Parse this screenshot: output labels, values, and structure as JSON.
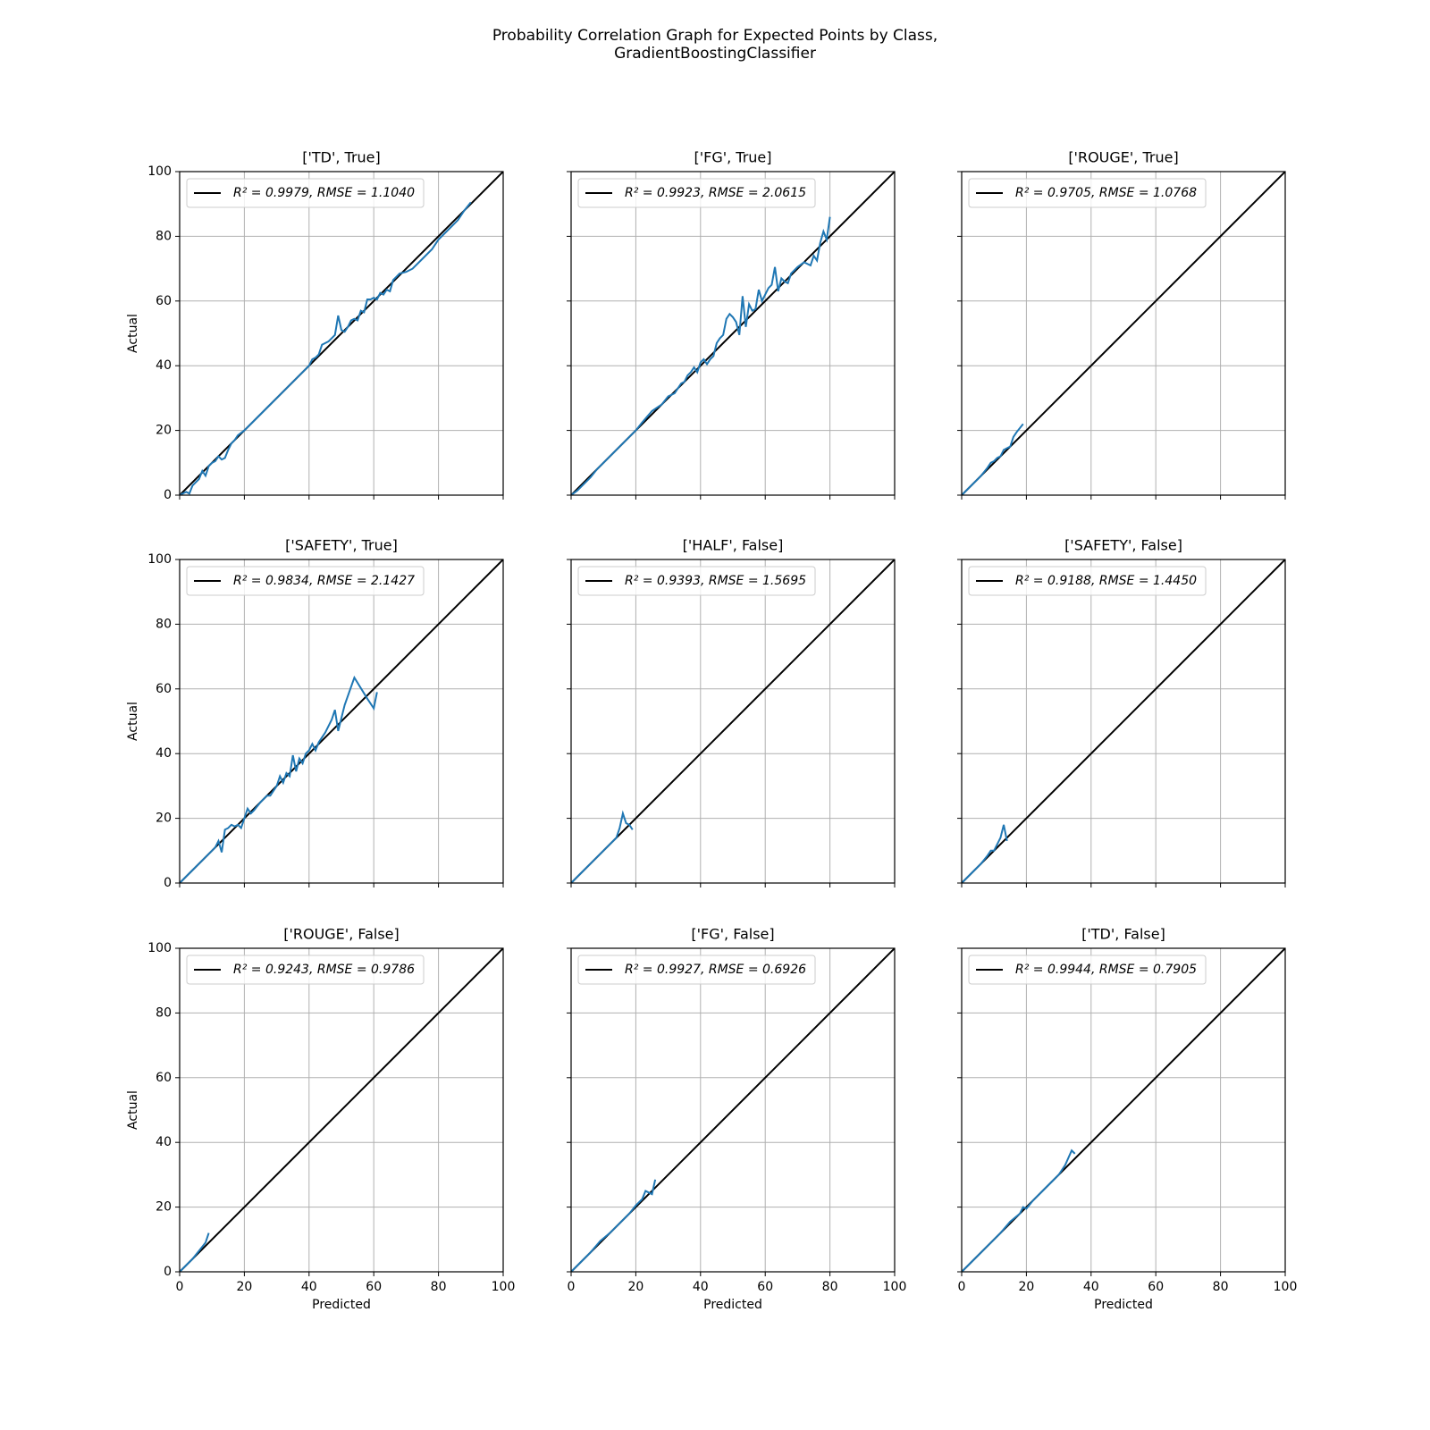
{
  "title": [
    "Probability Correlation Graph for Expected Points by Class,",
    "GradientBoostingClassifier"
  ],
  "chart_data": [
    {
      "type": "line",
      "title": "['TD', True]",
      "ylabel": "Actual",
      "xlim": [
        0,
        100
      ],
      "ylim": [
        0,
        100
      ],
      "xticks": [
        0,
        20,
        40,
        60,
        80,
        100
      ],
      "yticks": [
        0,
        20,
        40,
        60,
        80,
        100
      ],
      "x_tick_labels": false,
      "y_tick_labels": true,
      "grid": true,
      "legend": "upper left",
      "series": [
        {
          "name": "R² = 0.9979, RMSE = 1.1040",
          "color": "#000000",
          "x": [
            0,
            100
          ],
          "y": [
            0,
            100
          ]
        },
        {
          "color": "#1f77b4",
          "x": [
            0,
            2,
            3,
            4,
            5,
            6,
            7,
            8,
            9,
            10,
            11,
            12,
            13,
            14,
            15,
            16,
            17,
            18,
            20,
            22,
            25,
            28,
            30,
            32,
            35,
            38,
            40,
            41,
            42,
            43,
            44,
            45,
            46,
            47,
            48,
            49,
            50,
            51,
            52,
            53,
            54,
            55,
            56,
            57,
            58,
            59,
            60,
            61,
            62,
            63,
            64,
            65,
            66,
            67,
            68,
            70,
            72,
            75,
            78,
            80,
            83,
            86,
            88,
            90
          ],
          "y": [
            0,
            1,
            0.5,
            3,
            4,
            5,
            7.5,
            6,
            9,
            10,
            10.5,
            12,
            11,
            11.5,
            14,
            16,
            17,
            18.5,
            20,
            22,
            25,
            28,
            30,
            32,
            35,
            38,
            40,
            42,
            42.5,
            43.5,
            46.5,
            47,
            47.5,
            48.5,
            49.5,
            55.5,
            51,
            50.5,
            52,
            54,
            54.5,
            54,
            57,
            56.5,
            60.5,
            60.5,
            61,
            60.5,
            62.5,
            62,
            63.5,
            63,
            66.5,
            67.5,
            68.5,
            69,
            70,
            73,
            76,
            79,
            82,
            85,
            88,
            90.5
          ]
        }
      ]
    },
    {
      "type": "line",
      "title": "['FG', True]",
      "xlim": [
        0,
        100
      ],
      "ylim": [
        0,
        100
      ],
      "xticks": [
        0,
        20,
        40,
        60,
        80,
        100
      ],
      "yticks": [
        0,
        20,
        40,
        60,
        80,
        100
      ],
      "x_tick_labels": false,
      "y_tick_labels": false,
      "grid": true,
      "legend": "upper left",
      "series": [
        {
          "name": "R² = 0.9923, RMSE = 2.0615",
          "color": "#000000",
          "x": [
            0,
            100
          ],
          "y": [
            0,
            100
          ]
        },
        {
          "color": "#1f77b4",
          "x": [
            0,
            2,
            4,
            6,
            8,
            10,
            12,
            15,
            18,
            20,
            22,
            25,
            28,
            30,
            32,
            34,
            35,
            36,
            37,
            38,
            39,
            40,
            41,
            42,
            43,
            44,
            45,
            46,
            47,
            48,
            49,
            50,
            51,
            52,
            53,
            54,
            55,
            56,
            57,
            58,
            59,
            60,
            61,
            62,
            63,
            64,
            65,
            66,
            67,
            68,
            70,
            72,
            74,
            75,
            76,
            77,
            78,
            79,
            80
          ],
          "y": [
            0,
            1.5,
            3.5,
            5.5,
            8,
            10,
            12,
            15,
            18,
            20,
            22.5,
            26,
            28,
            30.5,
            31.5,
            34.5,
            35,
            37,
            38,
            39.5,
            38,
            41,
            42,
            40.5,
            42,
            43,
            47,
            48.5,
            49.5,
            54.5,
            56,
            55,
            53.5,
            49.5,
            61.5,
            52,
            59,
            57,
            57.5,
            63.5,
            60,
            62,
            64,
            65,
            70.5,
            63,
            67,
            66,
            65.5,
            68.5,
            70.5,
            72,
            71,
            74,
            72.5,
            78,
            81.5,
            79,
            86
          ]
        }
      ]
    },
    {
      "type": "line",
      "title": "['ROUGE', True]",
      "xlim": [
        0,
        100
      ],
      "ylim": [
        0,
        100
      ],
      "xticks": [
        0,
        20,
        40,
        60,
        80,
        100
      ],
      "yticks": [
        0,
        20,
        40,
        60,
        80,
        100
      ],
      "x_tick_labels": false,
      "y_tick_labels": false,
      "grid": true,
      "legend": "upper left",
      "series": [
        {
          "name": "R² = 0.9705, RMSE = 1.0768",
          "color": "#000000",
          "x": [
            0,
            100
          ],
          "y": [
            0,
            100
          ]
        },
        {
          "color": "#1f77b4",
          "x": [
            0,
            2,
            4,
            6,
            8,
            9,
            10,
            11,
            12,
            13,
            14,
            15,
            16,
            17,
            19
          ],
          "y": [
            0,
            2,
            4,
            6,
            8.5,
            10,
            10.5,
            11.5,
            12,
            14,
            14.5,
            15,
            18,
            19.5,
            22
          ]
        }
      ]
    },
    {
      "type": "line",
      "title": "['SAFETY', True]",
      "ylabel": "Actual",
      "xlim": [
        0,
        100
      ],
      "ylim": [
        0,
        100
      ],
      "xticks": [
        0,
        20,
        40,
        60,
        80,
        100
      ],
      "yticks": [
        0,
        20,
        40,
        60,
        80,
        100
      ],
      "x_tick_labels": false,
      "y_tick_labels": true,
      "grid": true,
      "legend": "upper left",
      "series": [
        {
          "name": "R² = 0.9834, RMSE = 2.1427",
          "color": "#000000",
          "x": [
            0,
            100
          ],
          "y": [
            0,
            100
          ]
        },
        {
          "color": "#1f77b4",
          "x": [
            0,
            3,
            6,
            9,
            11,
            12,
            13,
            14,
            15,
            16,
            17,
            18,
            19,
            20,
            21,
            22,
            23,
            25,
            27,
            28,
            29,
            30,
            31,
            32,
            33,
            34,
            35,
            36,
            37,
            38,
            39,
            40,
            41,
            42,
            43,
            44,
            45,
            46,
            47,
            48,
            49,
            50,
            51,
            54,
            58,
            60,
            61
          ],
          "y": [
            0,
            3,
            6,
            9,
            11,
            13,
            9.5,
            16.5,
            17,
            18,
            17.5,
            18,
            17,
            20,
            23,
            21.5,
            22.5,
            25,
            27,
            27,
            28.5,
            30,
            33,
            31,
            34,
            33,
            39.5,
            34.5,
            38.5,
            37,
            40,
            41,
            43,
            41,
            43.5,
            45,
            46.5,
            48.5,
            50.5,
            53.5,
            47,
            51,
            55,
            63.5,
            57,
            54,
            59
          ]
        }
      ]
    },
    {
      "type": "line",
      "title": "['HALF', False]",
      "xlim": [
        0,
        100
      ],
      "ylim": [
        0,
        100
      ],
      "xticks": [
        0,
        20,
        40,
        60,
        80,
        100
      ],
      "yticks": [
        0,
        20,
        40,
        60,
        80,
        100
      ],
      "x_tick_labels": false,
      "y_tick_labels": false,
      "grid": true,
      "legend": "upper left",
      "series": [
        {
          "name": "R² = 0.9393, RMSE = 1.5695",
          "color": "#000000",
          "x": [
            0,
            100
          ],
          "y": [
            0,
            100
          ]
        },
        {
          "color": "#1f77b4",
          "x": [
            0,
            3,
            6,
            9,
            12,
            14,
            15,
            16,
            17,
            18,
            19
          ],
          "y": [
            0,
            3,
            6,
            9,
            12,
            14,
            17,
            21.5,
            18.5,
            18,
            16.5
          ]
        }
      ]
    },
    {
      "type": "line",
      "title": "['SAFETY', False]",
      "xlim": [
        0,
        100
      ],
      "ylim": [
        0,
        100
      ],
      "xticks": [
        0,
        20,
        40,
        60,
        80,
        100
      ],
      "yticks": [
        0,
        20,
        40,
        60,
        80,
        100
      ],
      "x_tick_labels": false,
      "y_tick_labels": false,
      "grid": true,
      "legend": "upper left",
      "series": [
        {
          "name": "R² = 0.9188, RMSE = 1.4450",
          "color": "#000000",
          "x": [
            0,
            100
          ],
          "y": [
            0,
            100
          ]
        },
        {
          "color": "#1f77b4",
          "x": [
            0,
            3,
            6,
            8,
            9,
            10,
            11,
            12,
            13,
            14
          ],
          "y": [
            0,
            3,
            6,
            8.5,
            10,
            10,
            12,
            14,
            18,
            13
          ]
        }
      ]
    },
    {
      "type": "line",
      "title": "['ROUGE', False]",
      "xlabel": "Predicted",
      "ylabel": "Actual",
      "xlim": [
        0,
        100
      ],
      "ylim": [
        0,
        100
      ],
      "xticks": [
        0,
        20,
        40,
        60,
        80,
        100
      ],
      "yticks": [
        0,
        20,
        40,
        60,
        80,
        100
      ],
      "x_tick_labels": true,
      "y_tick_labels": true,
      "grid": true,
      "legend": "upper left",
      "series": [
        {
          "name": "R² = 0.9243, RMSE = 0.9786",
          "color": "#000000",
          "x": [
            0,
            100
          ],
          "y": [
            0,
            100
          ]
        },
        {
          "color": "#1f77b4",
          "x": [
            0,
            2,
            4,
            6,
            8,
            9
          ],
          "y": [
            0,
            2,
            4,
            6.5,
            9,
            12
          ]
        }
      ]
    },
    {
      "type": "line",
      "title": "['FG', False]",
      "xlabel": "Predicted",
      "xlim": [
        0,
        100
      ],
      "ylim": [
        0,
        100
      ],
      "xticks": [
        0,
        20,
        40,
        60,
        80,
        100
      ],
      "yticks": [
        0,
        20,
        40,
        60,
        80,
        100
      ],
      "x_tick_labels": true,
      "y_tick_labels": false,
      "grid": true,
      "legend": "upper left",
      "series": [
        {
          "name": "R² = 0.9927, RMSE = 0.6926",
          "color": "#000000",
          "x": [
            0,
            100
          ],
          "y": [
            0,
            100
          ]
        },
        {
          "color": "#1f77b4",
          "x": [
            0,
            3,
            6,
            9,
            12,
            15,
            18,
            20,
            22,
            23,
            24,
            25,
            26
          ],
          "y": [
            0,
            3,
            6,
            9.5,
            12,
            15,
            18,
            20.5,
            22.5,
            25,
            24.5,
            24,
            28.5
          ]
        }
      ]
    },
    {
      "type": "line",
      "title": "['TD', False]",
      "xlabel": "Predicted",
      "xlim": [
        0,
        100
      ],
      "ylim": [
        0,
        100
      ],
      "xticks": [
        0,
        20,
        40,
        60,
        80,
        100
      ],
      "yticks": [
        0,
        20,
        40,
        60,
        80,
        100
      ],
      "x_tick_labels": true,
      "y_tick_labels": false,
      "grid": true,
      "legend": "upper left",
      "series": [
        {
          "name": "R² = 0.9944, RMSE = 0.7905",
          "color": "#000000",
          "x": [
            0,
            100
          ],
          "y": [
            0,
            100
          ]
        },
        {
          "color": "#1f77b4",
          "x": [
            0,
            3,
            6,
            9,
            12,
            15,
            18,
            19,
            20,
            22,
            25,
            28,
            30,
            32,
            34,
            35
          ],
          "y": [
            0,
            3,
            6,
            9,
            12,
            15.5,
            18,
            20,
            19.5,
            22,
            25,
            28,
            30,
            33,
            37.5,
            36.5
          ]
        }
      ]
    }
  ]
}
